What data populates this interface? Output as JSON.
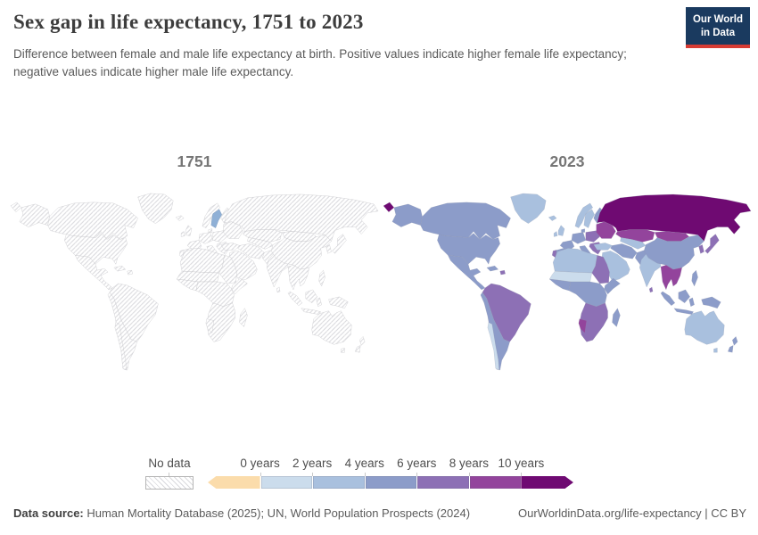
{
  "header": {
    "title": "Sex gap in life expectancy, 1751 to 2023",
    "subtitle": "Difference between female and male life expectancy at birth. Positive values indicate higher female life expectancy; negative values indicate higher male life expectancy.",
    "logo": {
      "line1": "Our World",
      "line2": "in Data",
      "bg_color": "#1a3a5f",
      "accent_color": "#d73c34"
    }
  },
  "maps": {
    "left": {
      "year_label": "1751"
    },
    "right": {
      "year_label": "2023"
    }
  },
  "legend": {
    "no_data_label": "No data",
    "tick_labels": [
      "0 years",
      "2 years",
      "4 years",
      "6 years",
      "8 years",
      "10 years"
    ]
  },
  "footer": {
    "source_label": "Data source:",
    "source_text": " Human Mortality Database (2025); UN, World Population Prospects (2024)",
    "link_text": "OurWorldinData.org/life-expectancy | CC BY"
  },
  "chart_data": {
    "type": "choropleth",
    "title": "Sex gap in life expectancy, 1751 to 2023",
    "unit": "years",
    "metric": "Difference between female and male life expectancy at birth (female minus male)",
    "no_data": {
      "label": "No data",
      "style": "hatched"
    },
    "sweden_1751_color": "#8fb0d6",
    "legend_bins": [
      {
        "range": "< 0 years",
        "color": "#fbdcab"
      },
      {
        "range": "0-2 years",
        "color": "#cbdcec"
      },
      {
        "range": "2-4 years",
        "color": "#a9c0de"
      },
      {
        "range": "4-6 years",
        "color": "#8c9cc9"
      },
      {
        "range": "6-8 years",
        "color": "#8d70b5"
      },
      {
        "range": "8-10 years",
        "color": "#93449c"
      },
      {
        "range": "> 10 years",
        "color": "#6f0a72"
      }
    ],
    "maps": [
      {
        "year": "1751",
        "coverage": "No data for all regions except Sweden",
        "region_bins": {
          "sweden": 2
        }
      },
      {
        "year": "2023",
        "region_bins": {
          "greenland": 2,
          "alaska": 3,
          "canada": 3,
          "usa": 3,
          "mexico": 3,
          "cuba": 3,
          "hispaniola": 4,
          "south-america-north": 4,
          "south-america-south": 3,
          "chile": 1,
          "iceland": 2,
          "uk": 2,
          "ireland": 2,
          "norway": 2,
          "sweden": 2,
          "finland": 3,
          "denmark": 3,
          "iberia": 3,
          "portugal": 4,
          "france": 3,
          "germany": 3,
          "italy": 3,
          "central-europe": 4,
          "balkans": 4,
          "ukraine-belarus": 5,
          "russia": 6,
          "russia-chukotka": 6,
          "kazakhstan": 5,
          "mongolia": 5,
          "central-asia": 2,
          "turkey": 2,
          "middle-east": 2,
          "iran": 3,
          "afghanistan-pakistan": 3,
          "india": 2,
          "sri-lanka": 4,
          "china": 3,
          "korea": 4,
          "japan": 4,
          "se-asia": 5,
          "philippines": 3,
          "sumatra": 3,
          "borneo": 3,
          "java": 3,
          "sulawesi": 3,
          "new-guinea": 3,
          "australia": 2,
          "tasmania": 2,
          "new-zealand": 3,
          "africa-north": 2,
          "africa-sahel": 1,
          "africa-egypt-sudan": 4,
          "africa-west": 3,
          "africa-central": 3,
          "africa-horn": 3,
          "africa-south": 4,
          "namibia": 5,
          "madagascar": 3
        }
      }
    ]
  }
}
